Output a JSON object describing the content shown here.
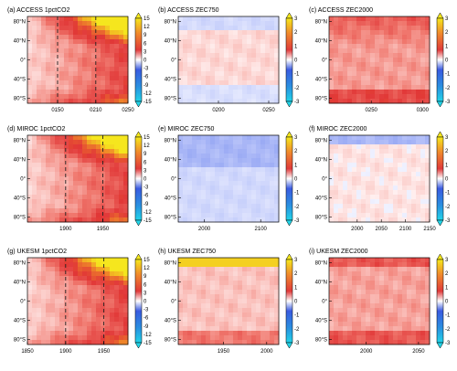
{
  "panels_layout": "3x3 grid of latitude-time Hovmoller plots, each with its own vertical colorbar on the right",
  "chart_data": [
    {
      "type": "heatmap",
      "title": "(a) ACCESS 1pctCO2",
      "x_ticks": [
        "0150",
        "0210",
        "0250"
      ],
      "y_ticks": [
        "80°N",
        "40°N",
        "0°",
        "40°S",
        "80°S"
      ],
      "colorbar_ticks": [
        "15",
        "12",
        "9",
        "6",
        "3",
        "0",
        "-3",
        "-6",
        "-9",
        "-12",
        "-15"
      ],
      "vmin": -15,
      "vmax": 15,
      "dashed_lines": [
        "0150",
        "0210"
      ]
    },
    {
      "type": "heatmap",
      "title": "(b) ACCESS ZEC750",
      "x_ticks": [
        "0200",
        "0250"
      ],
      "y_ticks": [
        "80°N",
        "40°N",
        "0°",
        "40°S",
        "80°S"
      ],
      "colorbar_ticks": [
        "3",
        "2",
        "1",
        "0",
        "-1",
        "-2",
        "-3"
      ],
      "vmin": -3,
      "vmax": 3
    },
    {
      "type": "heatmap",
      "title": "(c) ACCESS ZEC2000",
      "x_ticks": [
        "0250",
        "0300"
      ],
      "y_ticks": [
        "80°N",
        "40°N",
        "0°",
        "40°S",
        "80°S"
      ],
      "colorbar_ticks": [
        "3",
        "2",
        "1",
        "0",
        "-1",
        "-2",
        "-3"
      ],
      "vmin": -3,
      "vmax": 3
    },
    {
      "type": "heatmap",
      "title": "(d) MIROC 1pctCO2",
      "x_ticks": [
        "1900",
        "1950"
      ],
      "y_ticks": [
        "80°N",
        "40°N",
        "0°",
        "40°S",
        "80°S"
      ],
      "colorbar_ticks": [
        "15",
        "12",
        "9",
        "6",
        "3",
        "0",
        "-3",
        "-6",
        "-9",
        "-12",
        "-15"
      ],
      "vmin": -15,
      "vmax": 15,
      "dashed_lines": [
        "1900",
        "1950"
      ]
    },
    {
      "type": "heatmap",
      "title": "(e) MIROC ZEC750",
      "x_ticks": [
        "2000",
        "2100"
      ],
      "y_ticks": [
        "80°N",
        "40°N",
        "0°",
        "40°S",
        "80°S"
      ],
      "colorbar_ticks": [
        "3",
        "2",
        "1",
        "0",
        "-1",
        "-2",
        "-3"
      ],
      "vmin": -3,
      "vmax": 3
    },
    {
      "type": "heatmap",
      "title": "(f) MIROC ZEC2000",
      "x_ticks": [
        "2000",
        "2050",
        "2100",
        "2150"
      ],
      "y_ticks": [
        "80°N",
        "40°N",
        "0°",
        "40°S",
        "80°S"
      ],
      "colorbar_ticks": [
        "3",
        "2",
        "1",
        "0",
        "-1",
        "-2",
        "-3"
      ],
      "vmin": -3,
      "vmax": 3
    },
    {
      "type": "heatmap",
      "title": "(g) UKESM 1pctCO2",
      "x_ticks": [
        "1850",
        "1900",
        "1950"
      ],
      "y_ticks": [
        "80°N",
        "40°N",
        "0°",
        "40°S",
        "80°S"
      ],
      "colorbar_ticks": [
        "15",
        "12",
        "9",
        "6",
        "3",
        "0",
        "-3",
        "-6",
        "-9",
        "-12",
        "-15"
      ],
      "vmin": -15,
      "vmax": 15,
      "dashed_lines": [
        "1900",
        "1950"
      ]
    },
    {
      "type": "heatmap",
      "title": "(h) UKESM ZEC750",
      "x_ticks": [
        "1950",
        "2000"
      ],
      "y_ticks": [
        "80°N",
        "40°N",
        "0°",
        "40°S",
        "80°S"
      ],
      "colorbar_ticks": [
        "3",
        "2",
        "1",
        "0",
        "-1",
        "-2",
        "-3"
      ],
      "vmin": -3,
      "vmax": 3
    },
    {
      "type": "heatmap",
      "title": "(i) UKESM ZEC2000",
      "x_ticks": [
        "2000",
        "2050"
      ],
      "y_ticks": [
        "80°N",
        "40°N",
        "0°",
        "40°S",
        "80°S"
      ],
      "colorbar_ticks": [
        "3",
        "2",
        "1",
        "0",
        "-1",
        "-2",
        "-3"
      ],
      "vmin": -3,
      "vmax": 3
    }
  ]
}
